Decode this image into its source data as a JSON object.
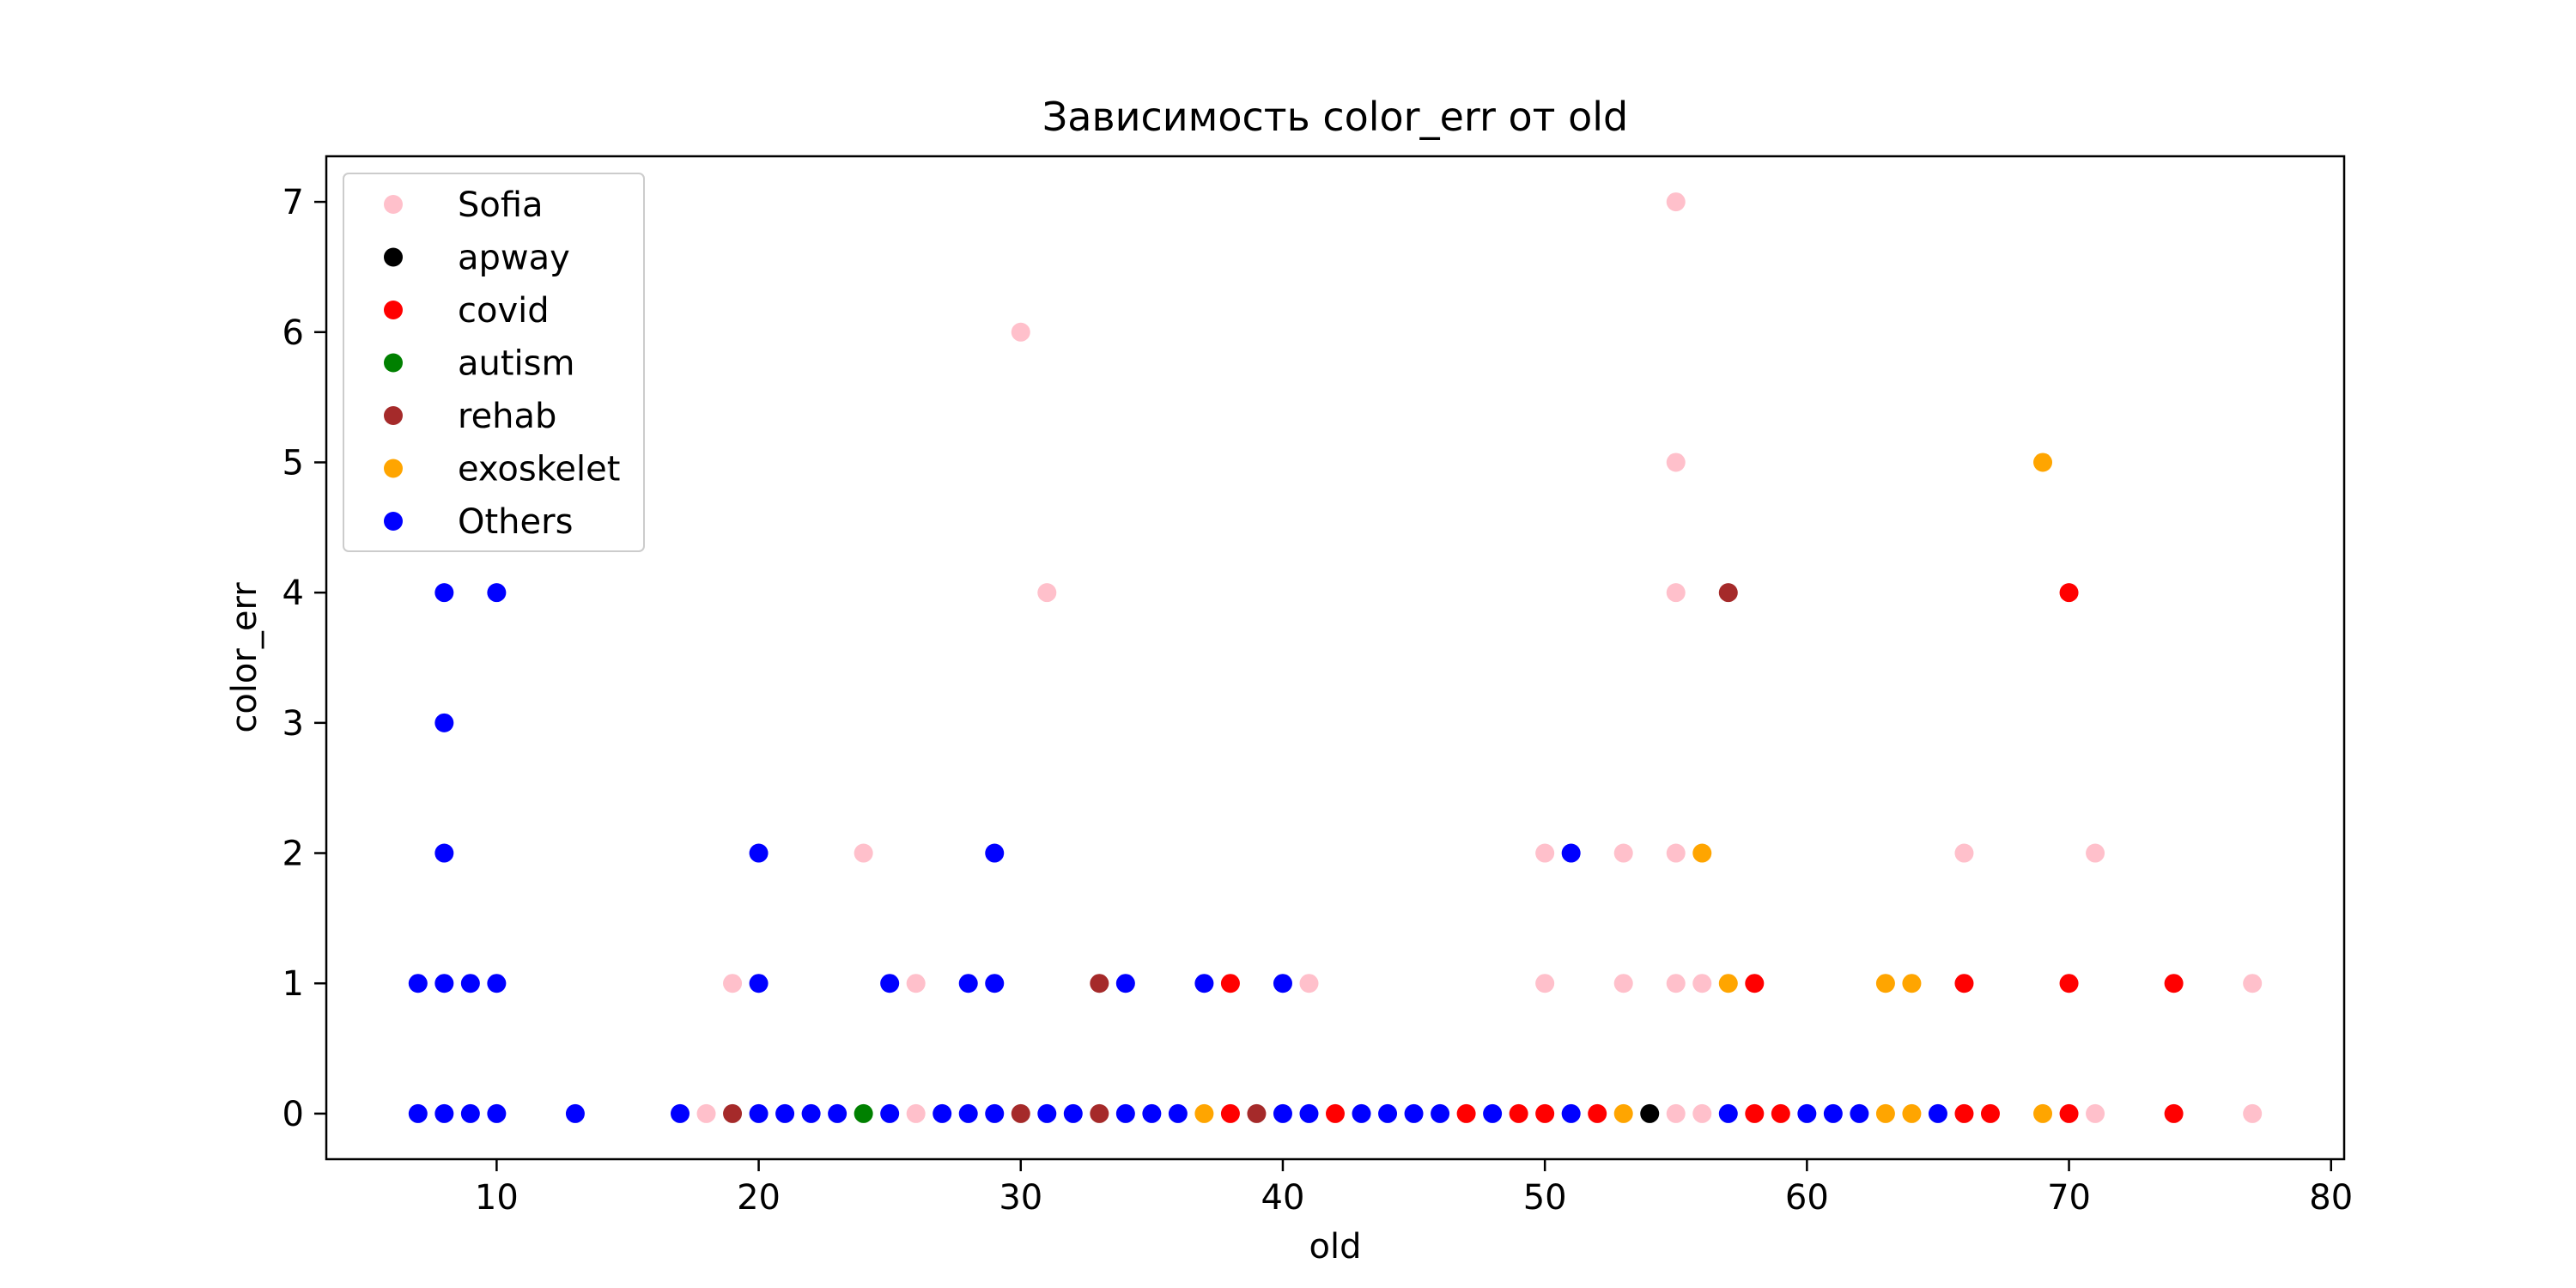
{
  "chart_data": {
    "type": "scatter",
    "title": "Зависимость color_err от old",
    "xlabel": "old",
    "ylabel": "color_err",
    "xlim": [
      3.5,
      80.5
    ],
    "ylim": [
      -0.35,
      7.35
    ],
    "xticks": [
      10,
      20,
      30,
      40,
      50,
      60,
      70,
      80
    ],
    "yticks": [
      0,
      1,
      2,
      3,
      4,
      5,
      6,
      7
    ],
    "grid": false,
    "legend_position": "top-left",
    "series": [
      {
        "name": "Sofia",
        "color": "#ffc0cb",
        "points": [
          [
            18,
            0
          ],
          [
            19,
            1
          ],
          [
            24,
            2
          ],
          [
            26,
            0
          ],
          [
            26,
            1
          ],
          [
            30,
            6
          ],
          [
            31,
            4
          ],
          [
            41,
            1
          ],
          [
            50,
            1
          ],
          [
            50,
            2
          ],
          [
            53,
            1
          ],
          [
            53,
            2
          ],
          [
            55,
            0
          ],
          [
            55,
            1
          ],
          [
            55,
            2
          ],
          [
            55,
            4
          ],
          [
            55,
            5
          ],
          [
            55,
            7
          ],
          [
            56,
            0
          ],
          [
            56,
            1
          ],
          [
            66,
            2
          ],
          [
            71,
            0
          ],
          [
            71,
            2
          ],
          [
            77,
            0
          ],
          [
            77,
            1
          ]
        ]
      },
      {
        "name": "apway",
        "color": "#000000",
        "points": [
          [
            54,
            0
          ]
        ]
      },
      {
        "name": "covid",
        "color": "#ff0000",
        "points": [
          [
            38,
            0
          ],
          [
            38,
            1
          ],
          [
            42,
            0
          ],
          [
            47,
            0
          ],
          [
            49,
            0
          ],
          [
            50,
            0
          ],
          [
            52,
            0
          ],
          [
            58,
            0
          ],
          [
            58,
            1
          ],
          [
            59,
            0
          ],
          [
            66,
            0
          ],
          [
            66,
            1
          ],
          [
            67,
            0
          ],
          [
            70,
            0
          ],
          [
            70,
            1
          ],
          [
            70,
            4
          ],
          [
            74,
            0
          ],
          [
            74,
            1
          ]
        ]
      },
      {
        "name": "autism",
        "color": "#008000",
        "points": [
          [
            24,
            0
          ]
        ]
      },
      {
        "name": "rehab",
        "color": "#a52a2a",
        "points": [
          [
            19,
            0
          ],
          [
            30,
            0
          ],
          [
            33,
            0
          ],
          [
            33,
            1
          ],
          [
            39,
            0
          ],
          [
            57,
            4
          ]
        ]
      },
      {
        "name": "exoskelet",
        "color": "#ffa500",
        "points": [
          [
            37,
            0
          ],
          [
            53,
            0
          ],
          [
            56,
            2
          ],
          [
            57,
            1
          ],
          [
            63,
            0
          ],
          [
            63,
            1
          ],
          [
            64,
            0
          ],
          [
            64,
            1
          ],
          [
            69,
            0
          ],
          [
            69,
            5
          ]
        ]
      },
      {
        "name": "Others",
        "color": "#0000ff",
        "points": [
          [
            7,
            0
          ],
          [
            7,
            1
          ],
          [
            8,
            0
          ],
          [
            8,
            1
          ],
          [
            8,
            2
          ],
          [
            8,
            3
          ],
          [
            8,
            4
          ],
          [
            9,
            0
          ],
          [
            9,
            1
          ],
          [
            10,
            0
          ],
          [
            10,
            1
          ],
          [
            10,
            4
          ],
          [
            13,
            0
          ],
          [
            17,
            0
          ],
          [
            20,
            0
          ],
          [
            20,
            1
          ],
          [
            20,
            2
          ],
          [
            21,
            0
          ],
          [
            22,
            0
          ],
          [
            23,
            0
          ],
          [
            25,
            0
          ],
          [
            25,
            1
          ],
          [
            27,
            0
          ],
          [
            28,
            0
          ],
          [
            28,
            1
          ],
          [
            29,
            0
          ],
          [
            29,
            1
          ],
          [
            29,
            2
          ],
          [
            31,
            0
          ],
          [
            32,
            0
          ],
          [
            34,
            0
          ],
          [
            34,
            1
          ],
          [
            35,
            0
          ],
          [
            36,
            0
          ],
          [
            37,
            1
          ],
          [
            40,
            0
          ],
          [
            40,
            1
          ],
          [
            41,
            0
          ],
          [
            43,
            0
          ],
          [
            44,
            0
          ],
          [
            45,
            0
          ],
          [
            46,
            0
          ],
          [
            48,
            0
          ],
          [
            51,
            0
          ],
          [
            51,
            2
          ],
          [
            57,
            0
          ],
          [
            60,
            0
          ],
          [
            61,
            0
          ],
          [
            62,
            0
          ],
          [
            65,
            0
          ]
        ]
      }
    ]
  }
}
